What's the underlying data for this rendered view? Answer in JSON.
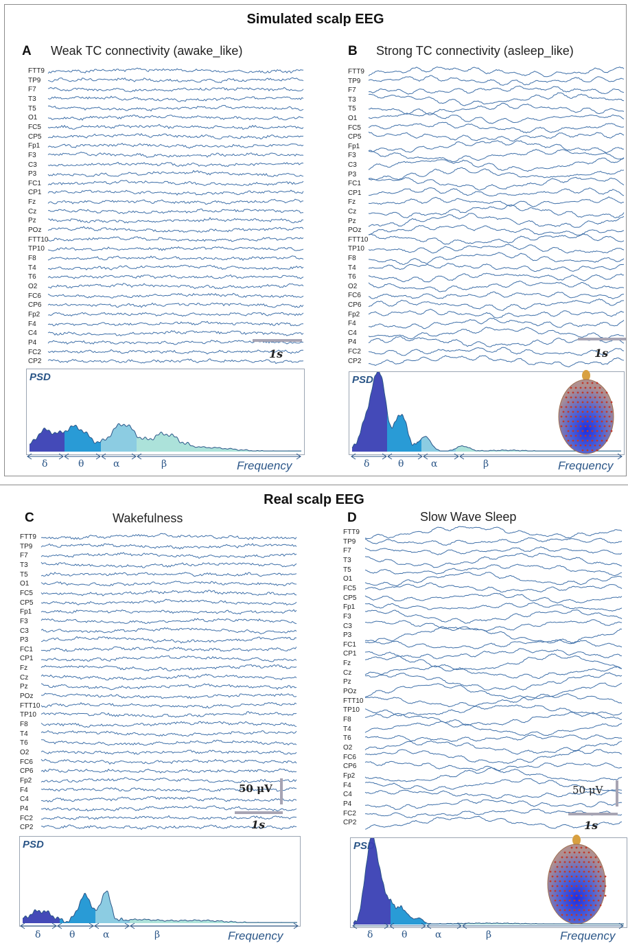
{
  "sections": {
    "simulated": {
      "title": "Simulated scalp EEG"
    },
    "real": {
      "title": "Real scalp EEG"
    }
  },
  "panels": {
    "A": {
      "letter": "A",
      "title": "Weak TC connectivity (awake_like)",
      "time_scale": "1s",
      "psd_label": "PSD",
      "frequency_label": "Frequency",
      "head_icon": false
    },
    "B": {
      "letter": "B",
      "title": "Strong TC connectivity (asleep_like)",
      "time_scale": "1s",
      "psd_label": "PSD",
      "frequency_label": "Frequency",
      "head_icon": true
    },
    "C": {
      "letter": "C",
      "title": "Wakefulness",
      "time_scale": "1s",
      "amp_scale": "50 μV",
      "psd_label": "PSD",
      "frequency_label": "Frequency",
      "head_icon": false
    },
    "D": {
      "letter": "D",
      "title": "Slow Wave Sleep",
      "time_scale": "1s",
      "amp_scale": "50 μV",
      "psd_label": "PSD",
      "frequency_label": "Frequency",
      "head_icon": true
    }
  },
  "channels": [
    "FTT9",
    "TP9",
    "F7",
    "T3",
    "T5",
    "O1",
    "FC5",
    "CP5",
    "Fp1",
    "F3",
    "C3",
    "P3",
    "FC1",
    "CP1",
    "Fz",
    "Cz",
    "Pz",
    "POz",
    "FTT10",
    "TP10",
    "F8",
    "T4",
    "T6",
    "O2",
    "FC6",
    "CP6",
    "Fp2",
    "F4",
    "C4",
    "P4",
    "FC2",
    "CP2"
  ],
  "bands": [
    "δ",
    "θ",
    "α",
    "β"
  ],
  "colors": {
    "trace": "#3e6fa8",
    "delta": "#3a40b4",
    "theta": "#1d96d4",
    "alpha": "#86c9e0",
    "beta": "#a8e0d8",
    "label_blue": "#2a5587",
    "scale_bar": "#a7a4b3"
  }
}
